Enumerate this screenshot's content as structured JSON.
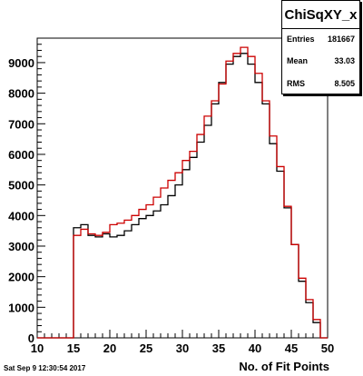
{
  "stats": {
    "title": "ChiSqXY_x",
    "entries_label": "Entries",
    "entries_value": "181667",
    "mean_label": "Mean",
    "mean_value": "33.03",
    "rms_label": "RMS",
    "rms_value": "8.505"
  },
  "footer": {
    "date": "Sat Sep  9 12:30:54 2017"
  },
  "chart_data": {
    "type": "histogram",
    "title": "",
    "xlabel": "No. of Fit Points",
    "ylabel": "",
    "xlim": [
      10,
      50
    ],
    "ylim": [
      0,
      9800
    ],
    "x_ticks": [
      10,
      15,
      20,
      25,
      30,
      35,
      40,
      45,
      50
    ],
    "y_ticks": [
      0,
      1000,
      2000,
      3000,
      4000,
      5000,
      6000,
      7000,
      8000,
      9000
    ],
    "bin_edges": [
      10,
      11,
      12,
      13,
      14,
      15,
      16,
      17,
      18,
      19,
      20,
      21,
      22,
      23,
      24,
      25,
      26,
      27,
      28,
      29,
      30,
      31,
      32,
      33,
      34,
      35,
      36,
      37,
      38,
      39,
      40,
      41,
      42,
      43,
      44,
      45,
      46,
      47,
      48,
      49,
      50
    ],
    "series": [
      {
        "color": "#000000",
        "values": [
          0,
          0,
          0,
          0,
          0,
          3600,
          3700,
          3350,
          3300,
          3400,
          3300,
          3350,
          3500,
          3700,
          3900,
          4000,
          4150,
          4350,
          4650,
          5000,
          5500,
          5900,
          6400,
          6950,
          7650,
          8350,
          8950,
          9200,
          9300,
          8950,
          8350,
          7650,
          6350,
          5450,
          4250,
          3050,
          1850,
          1150,
          500,
          0
        ]
      },
      {
        "color": "#cc0000",
        "values": [
          0,
          0,
          0,
          0,
          0,
          3350,
          3550,
          3400,
          3350,
          3450,
          3700,
          3750,
          3850,
          4000,
          4200,
          4350,
          4600,
          4900,
          5150,
          5400,
          5800,
          6100,
          6650,
          7250,
          7750,
          8300,
          9050,
          9300,
          9500,
          9200,
          8650,
          7750,
          6600,
          5600,
          4300,
          3050,
          1950,
          1250,
          600,
          0
        ]
      }
    ]
  }
}
